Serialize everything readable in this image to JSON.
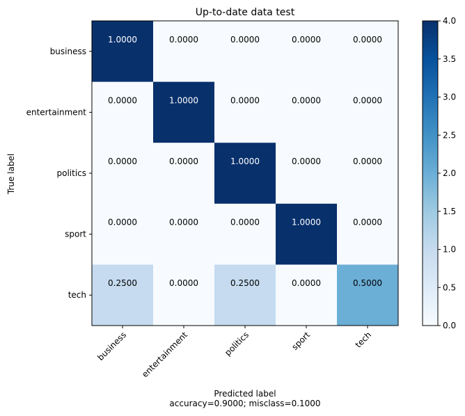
{
  "chart_data": {
    "type": "heatmap",
    "title": "Up-to-date data test",
    "xlabel": "Predicted label",
    "xlabel_sub": "accuracy=0.9000; misclass=0.1000",
    "ylabel": "True label",
    "x_categories": [
      "business",
      "entertainment",
      "politics",
      "sport",
      "tech"
    ],
    "y_categories": [
      "business",
      "entertainment",
      "politics",
      "sport",
      "tech"
    ],
    "values": [
      [
        1.0,
        0.0,
        0.0,
        0.0,
        0.0
      ],
      [
        0.0,
        1.0,
        0.0,
        0.0,
        0.0
      ],
      [
        0.0,
        0.0,
        1.0,
        0.0,
        0.0
      ],
      [
        0.0,
        0.0,
        0.0,
        1.0,
        0.0
      ],
      [
        0.25,
        0.0,
        0.25,
        0.0,
        0.5
      ]
    ],
    "cell_labels": [
      [
        "1.0000",
        "0.0000",
        "0.0000",
        "0.0000",
        "0.0000"
      ],
      [
        "0.0000",
        "1.0000",
        "0.0000",
        "0.0000",
        "0.0000"
      ],
      [
        "0.0000",
        "0.0000",
        "1.0000",
        "0.0000",
        "0.0000"
      ],
      [
        "0.0000",
        "0.0000",
        "0.0000",
        "1.0000",
        "0.0000"
      ],
      [
        "0.2500",
        "0.0000",
        "0.2500",
        "0.0000",
        "0.5000"
      ]
    ],
    "color_values": [
      [
        4,
        0,
        0,
        0,
        0
      ],
      [
        0,
        4,
        0,
        0,
        0
      ],
      [
        0,
        0,
        4,
        0,
        0
      ],
      [
        0,
        0,
        0,
        4,
        0
      ],
      [
        1,
        0,
        1,
        0,
        2
      ]
    ],
    "colorbar": {
      "range": [
        0.0,
        4.0
      ],
      "ticks": [
        "0.0",
        "0.5",
        "1.0",
        "1.5",
        "2.0",
        "2.5",
        "3.0",
        "3.5",
        "4.0"
      ],
      "colormap": "Blues"
    },
    "colors": {
      "min": "#f7fbff",
      "max": "#08306b",
      "text_dark": "#000000",
      "text_light": "#ffffff"
    }
  }
}
